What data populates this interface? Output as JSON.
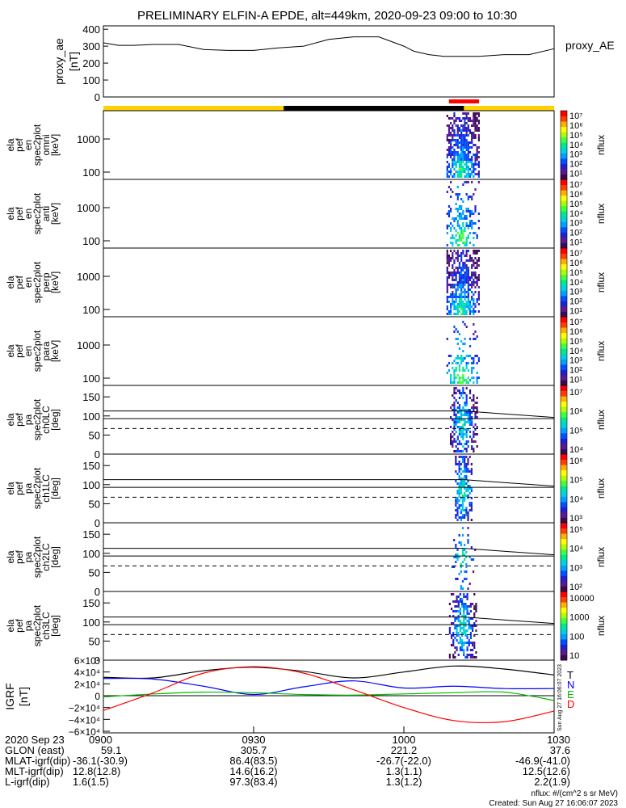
{
  "title": "PRELIMINARY ELFIN-A EPDE, alt=449km, 2020-09-23 09:00 to 10:30",
  "proxy_ae": {
    "ylabel": "proxy_ae\n[nT]",
    "side_label": "proxy_AE",
    "ylim": [
      0,
      420
    ],
    "yticks": [
      "400",
      "300",
      "200",
      "100",
      "0"
    ],
    "x_minutes": [
      0,
      3,
      6,
      10,
      15,
      20,
      25,
      30,
      35,
      40,
      45,
      50,
      55,
      60,
      62,
      65,
      68,
      70,
      75,
      80,
      85,
      90
    ],
    "values": [
      320,
      305,
      305,
      310,
      310,
      280,
      275,
      275,
      290,
      300,
      340,
      355,
      355,
      300,
      270,
      250,
      240,
      240,
      240,
      250,
      250,
      285
    ]
  },
  "status_bars": {
    "segments": [
      {
        "from_min": 0,
        "to_min": 36,
        "color": "#ffd200"
      },
      {
        "from_min": 36,
        "to_min": 72,
        "color": "#000000"
      },
      {
        "from_min": 72,
        "to_min": 90,
        "color": "#ffd200"
      }
    ],
    "red_bar": {
      "from_min": 69,
      "to_min": 75,
      "color": "#ff0000"
    }
  },
  "energy_panels": [
    {
      "ylabel": [
        "ela",
        "pef",
        "en",
        "spec2plot",
        "omni",
        "[keV]"
      ],
      "yticks": [
        "1000",
        "100"
      ],
      "cbar_label": "nflux",
      "cbar_ticks": [
        "10⁷",
        "10⁶",
        "10⁵",
        "10⁴",
        "10³",
        "10²",
        "10¹"
      ]
    },
    {
      "ylabel": [
        "ela",
        "pef",
        "en",
        "spec2plot",
        "anti",
        "[keV]"
      ],
      "yticks": [
        "1000",
        "100"
      ],
      "cbar_label": "nflux",
      "cbar_ticks": [
        "10⁷",
        "10⁶",
        "10⁵",
        "10⁴",
        "10³",
        "10²",
        "10¹"
      ]
    },
    {
      "ylabel": [
        "ela",
        "pef",
        "en",
        "spec2plot",
        "perp",
        "[keV]"
      ],
      "yticks": [
        "1000",
        "100"
      ],
      "cbar_label": "nflux",
      "cbar_ticks": [
        "10⁷",
        "10⁶",
        "10⁵",
        "10⁴",
        "10³",
        "10²",
        "10¹"
      ]
    },
    {
      "ylabel": [
        "ela",
        "pef",
        "en",
        "spec2plot",
        "para",
        "[keV]"
      ],
      "yticks": [
        "1000",
        "100"
      ],
      "cbar_label": "nflux",
      "cbar_ticks": [
        "10⁷",
        "10⁶",
        "10⁵",
        "10⁴",
        "10³",
        "10²",
        "10¹"
      ]
    }
  ],
  "pa_panels": [
    {
      "ylabel": [
        "ela",
        "pef",
        "pa",
        "spec2plot",
        "ch0LC",
        "[deg]"
      ],
      "yticks": [
        "150",
        "100",
        "50",
        "0"
      ],
      "cbar_label": "nflux",
      "cbar_ticks": [
        "10⁷",
        "10⁶",
        "10⁵",
        "10⁴"
      ]
    },
    {
      "ylabel": [
        "ela",
        "pef",
        "pa",
        "spec2plot",
        "ch1LC",
        "[deg]"
      ],
      "yticks": [
        "150",
        "100",
        "50",
        "0"
      ],
      "cbar_label": "nflux",
      "cbar_ticks": [
        "10⁶",
        "10⁵",
        "10⁴",
        "10³"
      ]
    },
    {
      "ylabel": [
        "ela",
        "pef",
        "pa",
        "spec2plot",
        "ch2LC",
        "[deg]"
      ],
      "yticks": [
        "150",
        "100",
        "50",
        "0"
      ],
      "cbar_label": "nflux",
      "cbar_ticks": [
        "10⁵",
        "10⁴",
        "10³",
        "10²"
      ]
    },
    {
      "ylabel": [
        "ela",
        "pef",
        "pa",
        "spec2plot",
        "ch3LC",
        "[deg]"
      ],
      "yticks": [
        "150",
        "100",
        "50",
        "0"
      ],
      "cbar_label": "nflux",
      "cbar_ticks": [
        "10000",
        "1000",
        "100",
        "10"
      ]
    }
  ],
  "igrf": {
    "ylabel": "IGRF\n[nT]",
    "yticks": [
      "6×10⁴",
      "4×10⁴",
      "2×10⁴",
      "0",
      "−2×10⁴",
      "−4×10⁴",
      "−6×10⁴"
    ],
    "legend": [
      {
        "label": "T",
        "color": "#000000"
      },
      {
        "label": "N",
        "color": "#0000ff"
      },
      {
        "label": "E",
        "color": "#00bb00"
      },
      {
        "label": "D",
        "color": "#ff0000"
      }
    ],
    "side_text": "Sun Aug 27 16:06:07 2023"
  },
  "orbit_table": {
    "x_ticks": [
      "0900",
      "0930",
      "1000",
      "1030"
    ],
    "rows": [
      {
        "label": "2020 Sep 23",
        "values": [
          "0900",
          "0930",
          "1000",
          "1030"
        ]
      },
      {
        "label": "GLON (east)",
        "values": [
          "59.1",
          "305.7",
          "221.2",
          "37.6"
        ]
      },
      {
        "label": "MLAT-igrf(dip)",
        "values": "-36.1(-30.9)  86.4(83.5)  -26.7(-22.0)  -46.9(-41.0)"
      },
      {
        "label": "MLT-igrf(dip)",
        "values": "12.8(12.8)  14.6(16.2)  1.3(1.1)  12.5(12.6)"
      },
      {
        "label": "L-igrf(dip)",
        "values": "1.6(1.5)  97.3(83.4)  1.3(1.2)  2.2(1.9)"
      }
    ],
    "row_labels_plain": [
      "2020 Sep 23",
      "GLON (east)",
      "MLAT-igrf(dip)",
      "MLT-igrf(dip)",
      "L-igrf(dip)"
    ],
    "col_values": [
      [
        "0900",
        "0930",
        "1000",
        "1030"
      ],
      [
        "59.1",
        "305.7",
        "221.2",
        "37.6"
      ],
      [
        "-36.1(-30.9)",
        "86.4(83.5)",
        "-26.7(-22.0)",
        "-46.9(-41.0)"
      ],
      [
        "12.8(12.8)",
        "14.6(16.2)",
        "1.3(1.1)",
        "12.5(12.6)"
      ],
      [
        "1.6(1.5)",
        "97.3(83.4)",
        "1.3(1.2)",
        "2.2(1.9)"
      ]
    ]
  },
  "footer": {
    "units": "nflux: #/(cm^2 s sr MeV)",
    "created": "Created: Sun Aug 27 16:06:07 2023"
  },
  "chart_data": {
    "type": "heatmap",
    "x_range_minutes": [
      0,
      90
    ],
    "pa_reference_lines_deg": [
      113,
      93,
      67
    ],
    "igrf_series": [
      {
        "name": "T",
        "x_minutes": [
          0,
          10,
          20,
          30,
          40,
          50,
          60,
          70,
          80,
          90
        ],
        "values": [
          31000,
          30000,
          42000,
          48000,
          41000,
          30000,
          40000,
          50000,
          45000,
          35000
        ]
      },
      {
        "name": "N",
        "x_minutes": [
          0,
          10,
          20,
          30,
          40,
          50,
          60,
          70,
          80,
          90
        ],
        "values": [
          29000,
          28000,
          16000,
          2000,
          15000,
          25000,
          13000,
          16000,
          12000,
          12000
        ]
      },
      {
        "name": "E",
        "x_minutes": [
          0,
          10,
          20,
          30,
          40,
          50,
          60,
          70,
          80,
          90
        ],
        "values": [
          -2000,
          3000,
          6000,
          5000,
          2000,
          1000,
          3000,
          5000,
          6000,
          -8000
        ]
      },
      {
        "name": "D",
        "x_minutes": [
          0,
          10,
          20,
          30,
          40,
          50,
          60,
          70,
          80,
          90
        ],
        "values": [
          -25000,
          5000,
          38000,
          49000,
          38000,
          10000,
          -20000,
          -42000,
          -44000,
          -26000
        ]
      }
    ]
  }
}
